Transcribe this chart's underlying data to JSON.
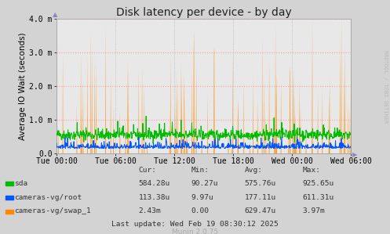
{
  "title": "Disk latency per device - by day",
  "ylabel": "Average IO Wait (seconds)",
  "background_color": "#d3d3d3",
  "plot_bg_color": "#e8e8e8",
  "grid_color_h": "#ff9999",
  "grid_color_v": "#aaaaaa",
  "ylim": [
    0,
    0.004
  ],
  "yticks": [
    0.0,
    0.001,
    0.002,
    0.003,
    0.004
  ],
  "ytick_labels": [
    "0.0",
    "1.0 m",
    "2.0 m",
    "3.0 m",
    "4.0 m"
  ],
  "xtick_labels": [
    "Tue 00:00",
    "Tue 06:00",
    "Tue 12:00",
    "Tue 18:00",
    "Wed 00:00",
    "Wed 06:00"
  ],
  "legend": [
    {
      "label": "sda",
      "color": "#00bb00"
    },
    {
      "label": "cameras-vg/root",
      "color": "#0055ff"
    },
    {
      "label": "cameras-vg/swap_1",
      "color": "#ff8800"
    }
  ],
  "table_headers": [
    "Cur:",
    "Min:",
    "Avg:",
    "Max:"
  ],
  "table_rows": [
    [
      "sda",
      "584.28u",
      "90.27u",
      "575.76u",
      "925.65u"
    ],
    [
      "cameras-vg/root",
      "113.38u",
      "9.97u",
      "177.11u",
      "611.31u"
    ],
    [
      "cameras-vg/swap_1",
      "2.43m",
      "0.00",
      "629.47u",
      "3.97m"
    ]
  ],
  "last_update": "Last update: Wed Feb 19 08:30:12 2025",
  "munin_version": "Munin 2.0.75",
  "rrdtool_label": "RRDTOOL / TOBI OETIKER",
  "num_points": 800,
  "sda_base": 0.00055,
  "root_base": 0.00014,
  "swap_spike_prob": 0.07,
  "swap_spike_max": 0.004,
  "title_fontsize": 10,
  "label_fontsize": 7.5,
  "tick_fontsize": 7,
  "table_fontsize": 6.8
}
